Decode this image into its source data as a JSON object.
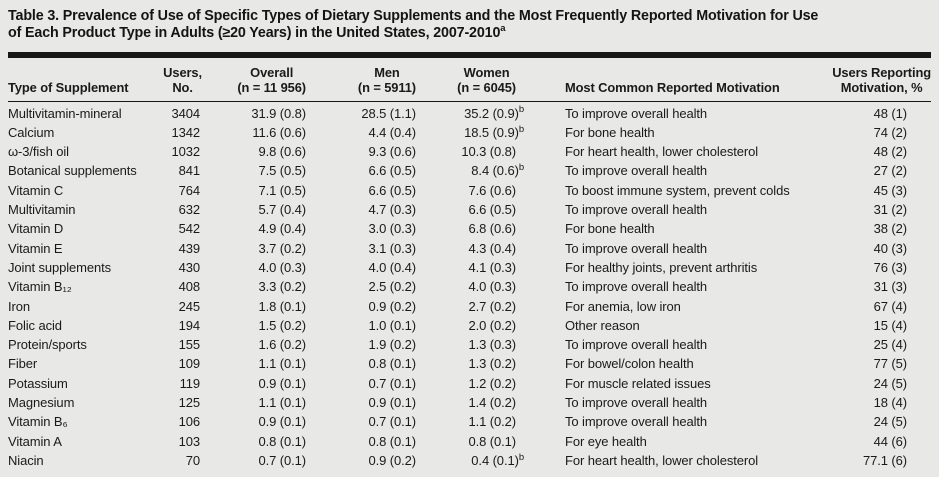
{
  "title": {
    "line1": "Table 3. Prevalence of Use of Specific Types of Dietary Supplements and the Most Frequently Reported Motivation for Use",
    "line2": "of Each Product Type in Adults (≥20 Years) in the United States, 2007-2010",
    "footnote_marker": "a"
  },
  "table": {
    "columns": [
      {
        "id": "supplement",
        "line1": "",
        "line2": "Type of Supplement"
      },
      {
        "id": "users",
        "line1": "Users,",
        "line2": "No."
      },
      {
        "id": "overall",
        "line1": "Overall",
        "line2": "(n = 11 956)"
      },
      {
        "id": "men",
        "line1": "Men",
        "line2": "(n = 5911)"
      },
      {
        "id": "women",
        "line1": "Women",
        "line2": "(n = 6045)"
      },
      {
        "id": "motivation",
        "line1": "",
        "line2": "Most Common Reported Motivation"
      },
      {
        "id": "pct",
        "line1": "Users Reporting",
        "line2": "Motivation, %"
      }
    ],
    "rows": [
      {
        "supplement": "Multivitamin-mineral",
        "users": "3404",
        "overall": "31.9 (0.8)",
        "men": "28.5 (1.1)",
        "women": "35.2 (0.9)",
        "women_fn": "b",
        "motivation": "To improve overall health",
        "pct": "48 (1)"
      },
      {
        "supplement": "Calcium",
        "users": "1342",
        "overall": "11.6 (0.6)",
        "men": "4.4 (0.4)",
        "women": "18.5 (0.9)",
        "women_fn": "b",
        "motivation": "For bone health",
        "pct": "74 (2)"
      },
      {
        "supplement": "ω-3/fish oil",
        "users": "1032",
        "overall": "9.8 (0.6)",
        "men": "9.3 (0.6)",
        "women": "10.3 (0.8)",
        "motivation": "For heart health, lower cholesterol",
        "pct": "48 (2)"
      },
      {
        "supplement": "Botanical supplements",
        "users": "841",
        "overall": "7.5 (0.5)",
        "men": "6.6 (0.5)",
        "women": "8.4 (0.6)",
        "women_fn": "b",
        "motivation": "To improve overall health",
        "pct": "27 (2)"
      },
      {
        "supplement": "Vitamin C",
        "users": "764",
        "overall": "7.1 (0.5)",
        "men": "6.6 (0.5)",
        "women": "7.6 (0.6)",
        "motivation": "To boost immune system, prevent colds",
        "pct": "45 (3)"
      },
      {
        "supplement": "Multivitamin",
        "users": "632",
        "overall": "5.7 (0.4)",
        "men": "4.7 (0.3)",
        "women": "6.6 (0.5)",
        "motivation": "To improve overall health",
        "pct": "31 (2)"
      },
      {
        "supplement": "Vitamin D",
        "users": "542",
        "overall": "4.9 (0.4)",
        "men": "3.0 (0.3)",
        "women": "6.8 (0.6)",
        "motivation": "For bone health",
        "pct": "38 (2)"
      },
      {
        "supplement": "Vitamin E",
        "users": "439",
        "overall": "3.7 (0.2)",
        "men": "3.1 (0.3)",
        "women": "4.3 (0.4)",
        "motivation": "To improve overall health",
        "pct": "40 (3)"
      },
      {
        "supplement": "Joint supplements",
        "users": "430",
        "overall": "4.0 (0.3)",
        "men": "4.0 (0.4)",
        "women": "4.1 (0.3)",
        "motivation": "For healthy joints, prevent arthritis",
        "pct": "76 (3)"
      },
      {
        "supplement": "Vitamin B₁₂",
        "users": "408",
        "overall": "3.3 (0.2)",
        "men": "2.5 (0.2)",
        "women": "4.0 (0.3)",
        "motivation": "To improve overall health",
        "pct": "31 (3)"
      },
      {
        "supplement": "Iron",
        "users": "245",
        "overall": "1.8 (0.1)",
        "men": "0.9 (0.2)",
        "women": "2.7 (0.2)",
        "motivation": "For anemia, low iron",
        "pct": "67 (4)"
      },
      {
        "supplement": "Folic acid",
        "users": "194",
        "overall": "1.5 (0.2)",
        "men": "1.0 (0.1)",
        "women": "2.0 (0.2)",
        "motivation": "Other reason",
        "pct": "15 (4)"
      },
      {
        "supplement": "Protein/sports",
        "users": "155",
        "overall": "1.6 (0.2)",
        "men": "1.9 (0.2)",
        "women": "1.3 (0.3)",
        "motivation": "To improve overall health",
        "pct": "25 (4)"
      },
      {
        "supplement": "Fiber",
        "users": "109",
        "overall": "1.1 (0.1)",
        "men": "0.8 (0.1)",
        "women": "1.3 (0.2)",
        "motivation": "For bowel/colon health",
        "pct": "77 (5)"
      },
      {
        "supplement": "Potassium",
        "users": "119",
        "overall": "0.9 (0.1)",
        "men": "0.7 (0.1)",
        "women": "1.2 (0.2)",
        "motivation": "For muscle related issues",
        "pct": "24 (5)"
      },
      {
        "supplement": "Magnesium",
        "users": "125",
        "overall": "1.1 (0.1)",
        "men": "0.9 (0.1)",
        "women": "1.4 (0.2)",
        "motivation": "To improve overall health",
        "pct": "18 (4)"
      },
      {
        "supplement": "Vitamin B₆",
        "users": "106",
        "overall": "0.9 (0.1)",
        "men": "0.7 (0.1)",
        "women": "1.1 (0.2)",
        "motivation": "To improve overall health",
        "pct": "24 (5)"
      },
      {
        "supplement": "Vitamin A",
        "users": "103",
        "overall": "0.8 (0.1)",
        "men": "0.8 (0.1)",
        "women": "0.8 (0.1)",
        "motivation": "For eye health",
        "pct": "44 (6)"
      },
      {
        "supplement": "Niacin",
        "users": "70",
        "overall": "0.7 (0.1)",
        "men": "0.9 (0.2)",
        "women": "0.4 (0.1)",
        "women_fn": "b",
        "motivation": "For heart health, lower cholesterol",
        "pct": "77.1 (6)"
      }
    ]
  }
}
